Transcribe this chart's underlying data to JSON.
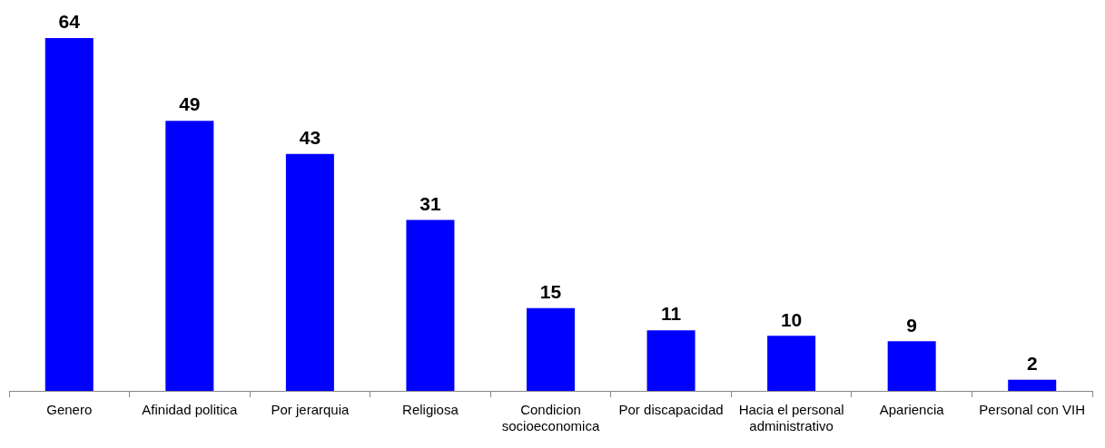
{
  "chart_data": {
    "type": "bar",
    "categories": [
      "Genero",
      "Afinidad politica",
      "Por jerarquia",
      "Religiosa",
      "Condicion socioeconomica",
      "Por discapacidad",
      "Hacia el personal administrativo",
      "Apariencia",
      "Personal con VIH"
    ],
    "values": [
      64,
      49,
      43,
      31,
      15,
      11,
      10,
      9,
      2
    ],
    "color": "#0000ff",
    "tick_labels": "x",
    "data_labels": true,
    "grid": false,
    "legend": false
  }
}
